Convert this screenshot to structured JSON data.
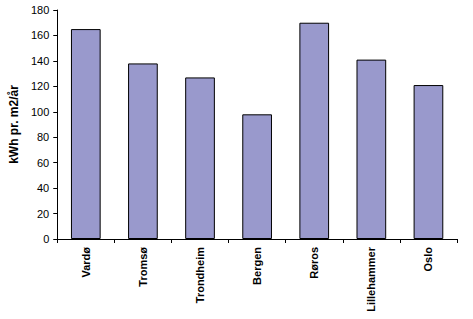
{
  "chart_data": {
    "type": "bar",
    "y_label": "kWh pr. m2/år",
    "categories": [
      "Vardø",
      "Tromsø",
      "Trondheim",
      "Bergen",
      "Røros",
      "Lillehammer",
      "Oslo"
    ],
    "values": [
      165,
      138,
      127,
      98,
      170,
      141,
      121
    ],
    "color": "#9999cc",
    "ylim": [
      0,
      180
    ],
    "yticks": [
      0,
      20,
      40,
      60,
      80,
      100,
      120,
      140,
      160,
      180
    ],
    "grid": false
  }
}
